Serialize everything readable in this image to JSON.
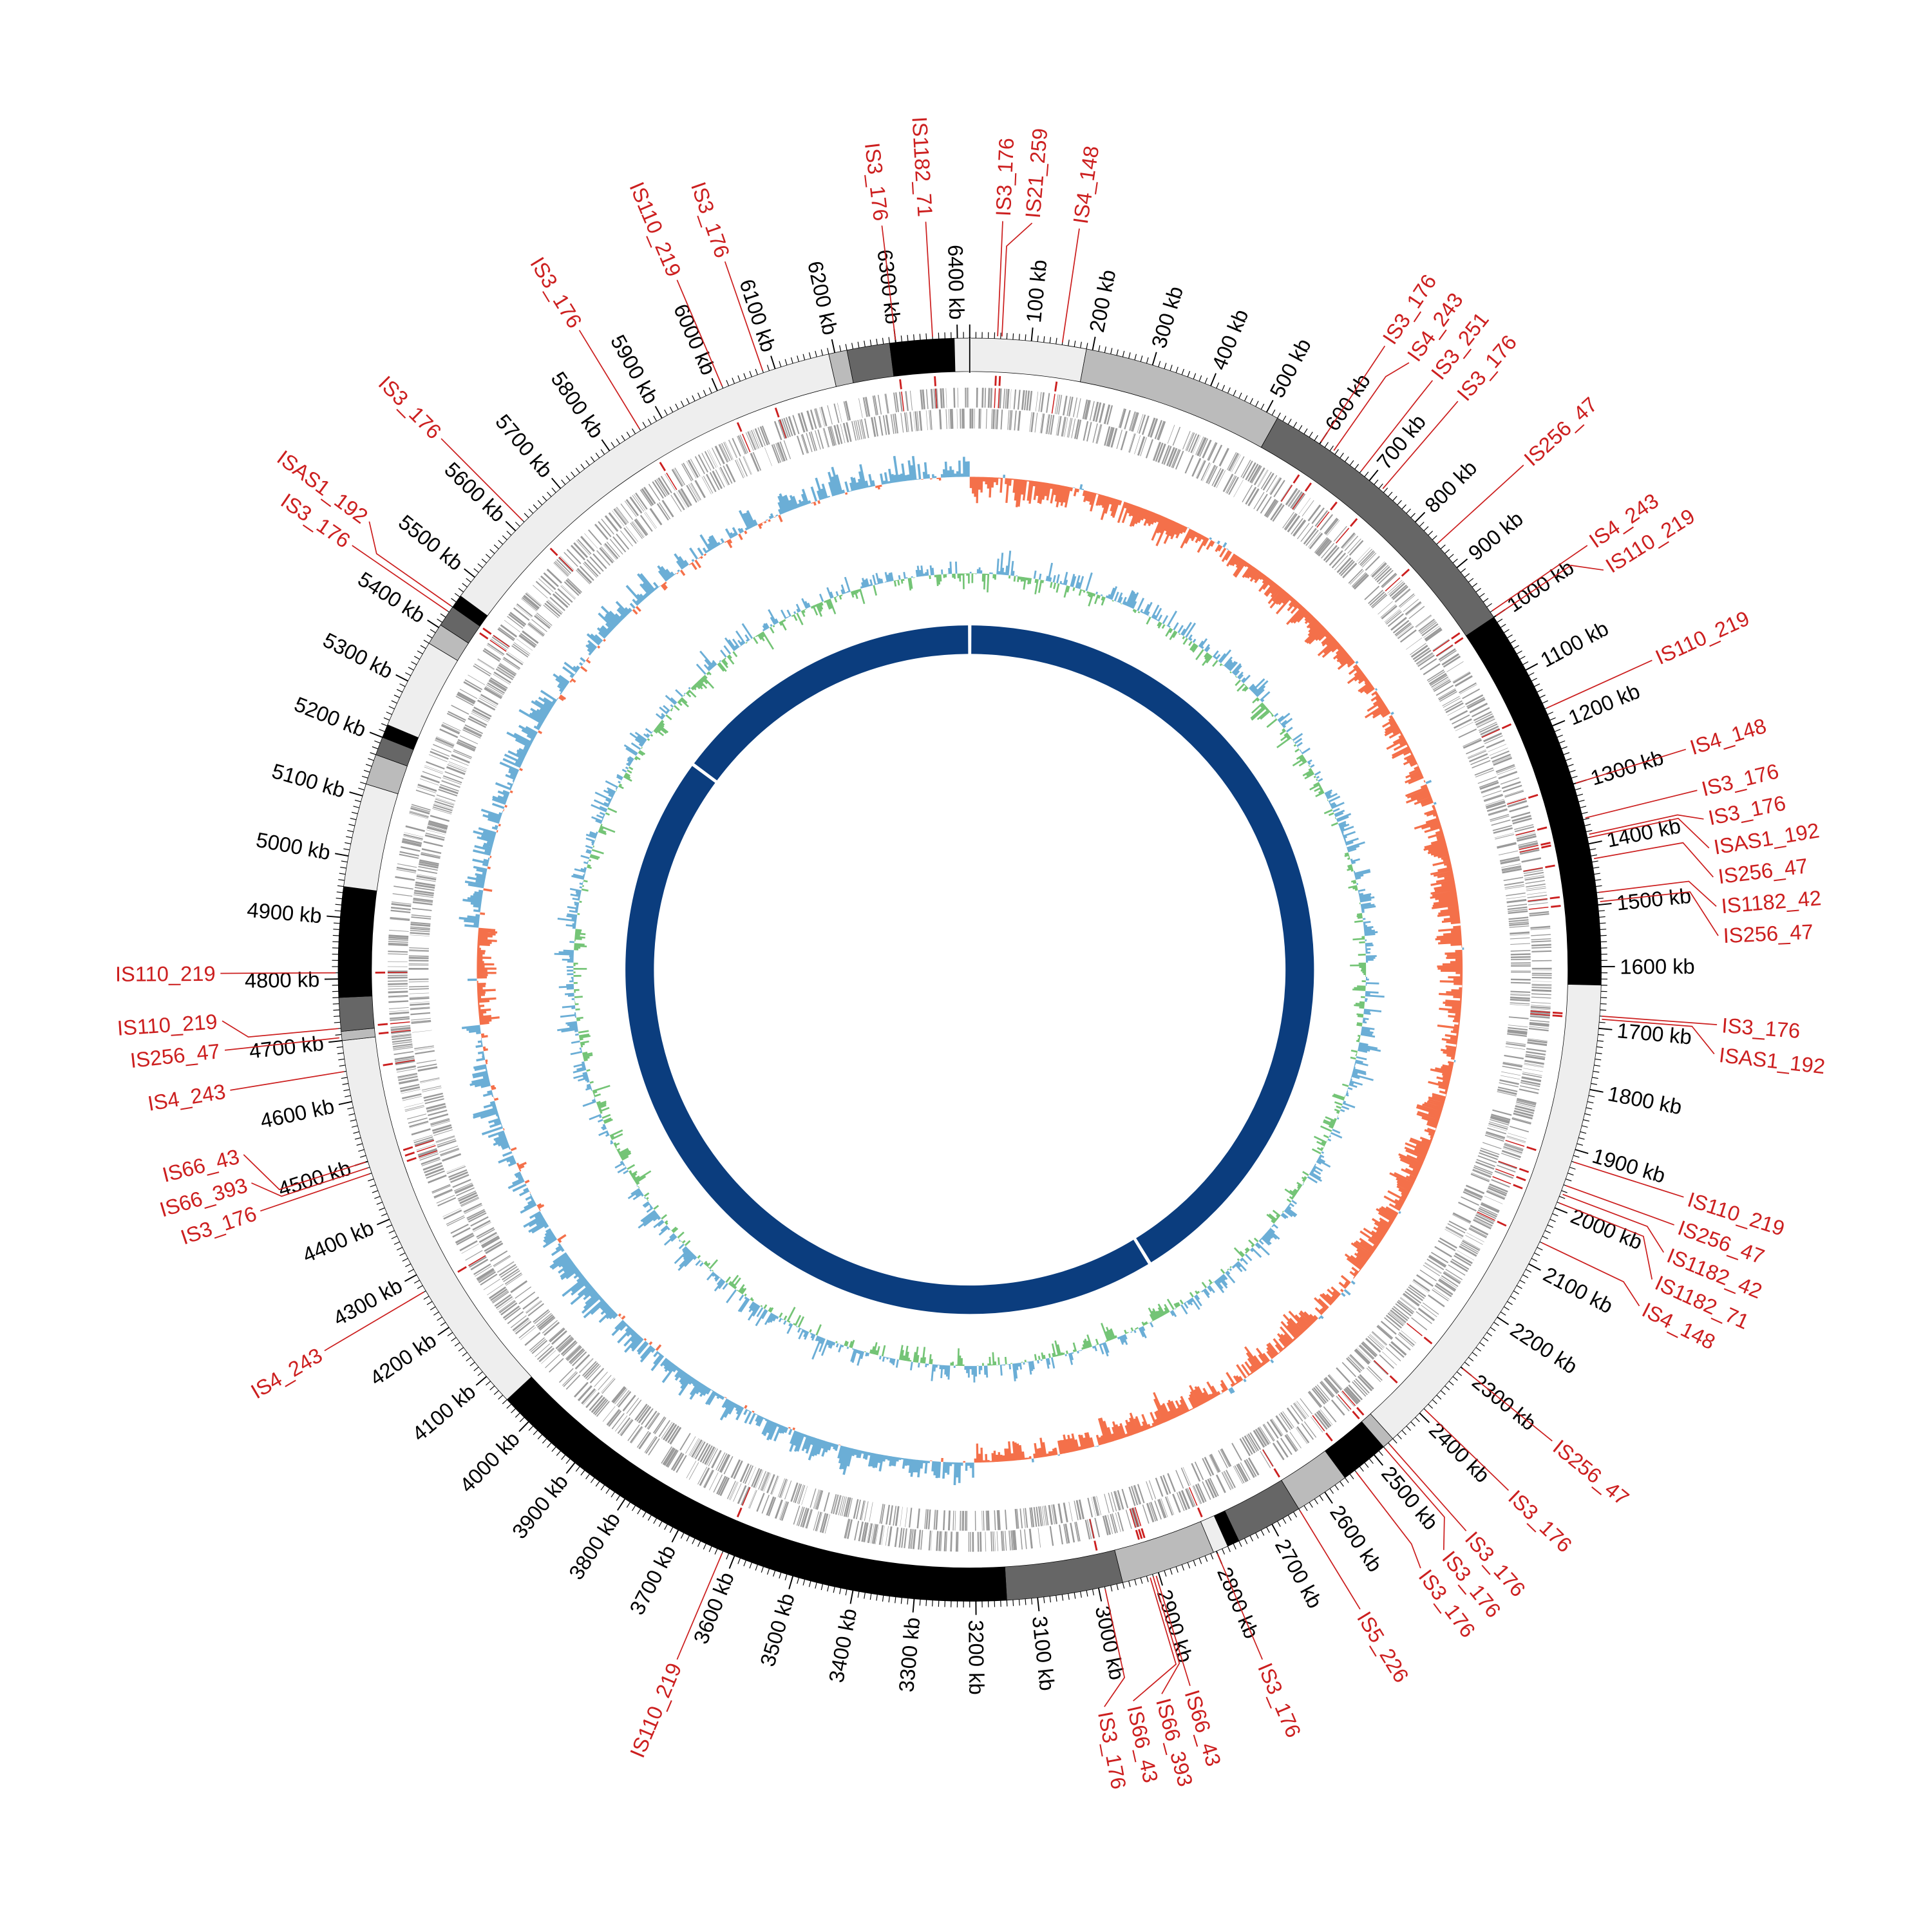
{
  "genome": {
    "length_kb": 6420,
    "tick_unit": "kb",
    "tick_labels_kb": [
      100,
      200,
      300,
      400,
      500,
      600,
      700,
      800,
      900,
      1000,
      1100,
      1200,
      1300,
      1400,
      1500,
      1600,
      1700,
      1800,
      1900,
      2000,
      2100,
      2200,
      2300,
      2400,
      2500,
      2600,
      2700,
      2800,
      2900,
      3000,
      3100,
      3200,
      3300,
      3400,
      3500,
      3600,
      3700,
      3800,
      3900,
      4000,
      4100,
      4200,
      4300,
      4400,
      4500,
      4600,
      4700,
      4800,
      4900,
      5000,
      5100,
      5200,
      5300,
      5400,
      5500,
      5600,
      5700,
      5800,
      5900,
      6000,
      6100,
      6200,
      6300,
      6400
    ],
    "bands": [
      {
        "start": 0,
        "end": 190,
        "shade": "#eeeeee"
      },
      {
        "start": 190,
        "end": 520,
        "shade": "#bbbbbb"
      },
      {
        "start": 520,
        "end": 1000,
        "shade": "#666666"
      },
      {
        "start": 1000,
        "end": 1630,
        "shade": "#000000"
      },
      {
        "start": 1630,
        "end": 2460,
        "shade": "#eeeeee"
      },
      {
        "start": 2460,
        "end": 2480,
        "shade": "#bbbbbb"
      },
      {
        "start": 2480,
        "end": 2560,
        "shade": "#000000"
      },
      {
        "start": 2560,
        "end": 2650,
        "shade": "#bbbbbb"
      },
      {
        "start": 2650,
        "end": 2760,
        "shade": "#666666"
      },
      {
        "start": 2760,
        "end": 2780,
        "shade": "#000000"
      },
      {
        "start": 2780,
        "end": 2805,
        "shade": "#eeeeee"
      },
      {
        "start": 2805,
        "end": 2960,
        "shade": "#bbbbbb"
      },
      {
        "start": 2960,
        "end": 3150,
        "shade": "#666666"
      },
      {
        "start": 3150,
        "end": 4050,
        "shade": "#000000"
      },
      {
        "start": 4050,
        "end": 4700,
        "shade": "#eeeeee"
      },
      {
        "start": 4700,
        "end": 4715,
        "shade": "#bbbbbb"
      },
      {
        "start": 4715,
        "end": 4770,
        "shade": "#666666"
      },
      {
        "start": 4770,
        "end": 4950,
        "shade": "#000000"
      },
      {
        "start": 4950,
        "end": 5120,
        "shade": "#eeeeee"
      },
      {
        "start": 5120,
        "end": 5170,
        "shade": "#bbbbbb"
      },
      {
        "start": 5170,
        "end": 5200,
        "shade": "#666666"
      },
      {
        "start": 5200,
        "end": 5222,
        "shade": "#000000"
      },
      {
        "start": 5222,
        "end": 5370,
        "shade": "#eeeeee"
      },
      {
        "start": 5370,
        "end": 5405,
        "shade": "#bbbbbb"
      },
      {
        "start": 5405,
        "end": 5440,
        "shade": "#666666"
      },
      {
        "start": 5440,
        "end": 5462,
        "shade": "#000000"
      },
      {
        "start": 5462,
        "end": 6190,
        "shade": "#eeeeee"
      },
      {
        "start": 6190,
        "end": 6220,
        "shade": "#bbbbbb"
      },
      {
        "start": 6220,
        "end": 6290,
        "shade": "#666666"
      },
      {
        "start": 6290,
        "end": 6395,
        "shade": "#000000"
      },
      {
        "start": 6395,
        "end": 6420,
        "shade": "#eeeeee"
      }
    ],
    "inner_ring_breaks_kb": [
      0,
      2648,
      5467
    ]
  },
  "is_elements": [
    {
      "name": "IS3_176",
      "kb": 45
    },
    {
      "name": "IS21_259",
      "kb": 52
    },
    {
      "name": "IS4_148",
      "kb": 150
    },
    {
      "name": "IS3_176",
      "kb": 600
    },
    {
      "name": "IS4_243",
      "kb": 625
    },
    {
      "name": "IS3_251",
      "kb": 680
    },
    {
      "name": "IS3_176",
      "kb": 725
    },
    {
      "name": "IS256_47",
      "kb": 850
    },
    {
      "name": "IS4_243",
      "kb": 990
    },
    {
      "name": "IS110_219",
      "kb": 1000
    },
    {
      "name": "IS110_219",
      "kb": 1170
    },
    {
      "name": "IS4_148",
      "kb": 1300
    },
    {
      "name": "IS3_176",
      "kb": 1358
    },
    {
      "name": "IS3_176",
      "kb": 1385
    },
    {
      "name": "ISAS1_192",
      "kb": 1390
    },
    {
      "name": "IS256_47",
      "kb": 1425
    },
    {
      "name": "IS1182_42",
      "kb": 1480
    },
    {
      "name": "IS256_47",
      "kb": 1495
    },
    {
      "name": "IS3_176",
      "kb": 1680
    },
    {
      "name": "ISAS1_192",
      "kb": 1685
    },
    {
      "name": "IS110_219",
      "kb": 1920
    },
    {
      "name": "IS256_47",
      "kb": 1960
    },
    {
      "name": "IS1182_42",
      "kb": 1975
    },
    {
      "name": "IS1182_71",
      "kb": 1990
    },
    {
      "name": "IS4_148",
      "kb": 2060
    },
    {
      "name": "IS256_47",
      "kb": 2300
    },
    {
      "name": "IS3_176",
      "kb": 2390
    },
    {
      "name": "IS3_176",
      "kb": 2470
    },
    {
      "name": "IS3_176",
      "kb": 2480
    },
    {
      "name": "IS3_176",
      "kb": 2540
    },
    {
      "name": "IS5_226",
      "kb": 2650
    },
    {
      "name": "IS3_176",
      "kb": 2800
    },
    {
      "name": "IS66_43",
      "kb": 2905
    },
    {
      "name": "IS66_393",
      "kb": 2910
    },
    {
      "name": "IS66_43",
      "kb": 2915
    },
    {
      "name": "IS3_176",
      "kb": 2990
    },
    {
      "name": "IS110_219",
      "kb": 3620
    },
    {
      "name": "IS4_243",
      "kb": 4270
    },
    {
      "name": "IS3_176",
      "kb": 4480
    },
    {
      "name": "IS66_393",
      "kb": 4490
    },
    {
      "name": "IS66_43",
      "kb": 4500
    },
    {
      "name": "IS4_243",
      "kb": 4650
    },
    {
      "name": "IS256_47",
      "kb": 4705
    },
    {
      "name": "IS110_219",
      "kb": 4720
    },
    {
      "name": "IS110_219",
      "kb": 4810
    },
    {
      "name": "IS3_176",
      "kb": 5430
    },
    {
      "name": "ISAS1_192",
      "kb": 5440
    },
    {
      "name": "IS3_176",
      "kb": 5620
    },
    {
      "name": "IS3_176",
      "kb": 5860
    },
    {
      "name": "IS110_219",
      "kb": 6010
    },
    {
      "name": "IS3_176",
      "kb": 6080
    },
    {
      "name": "IS3_176",
      "kb": 6300
    },
    {
      "name": "IS1182_71",
      "kb": 6360
    }
  ],
  "colors": {
    "is_red": "#cc1f1f",
    "skew_positive": "#f4704a",
    "skew_negative": "#6baed6",
    "gc_positive": "#74c476",
    "gc_negative": "#6baed6",
    "inner_ring": "#0b3d7e",
    "gene": "#999999"
  }
}
